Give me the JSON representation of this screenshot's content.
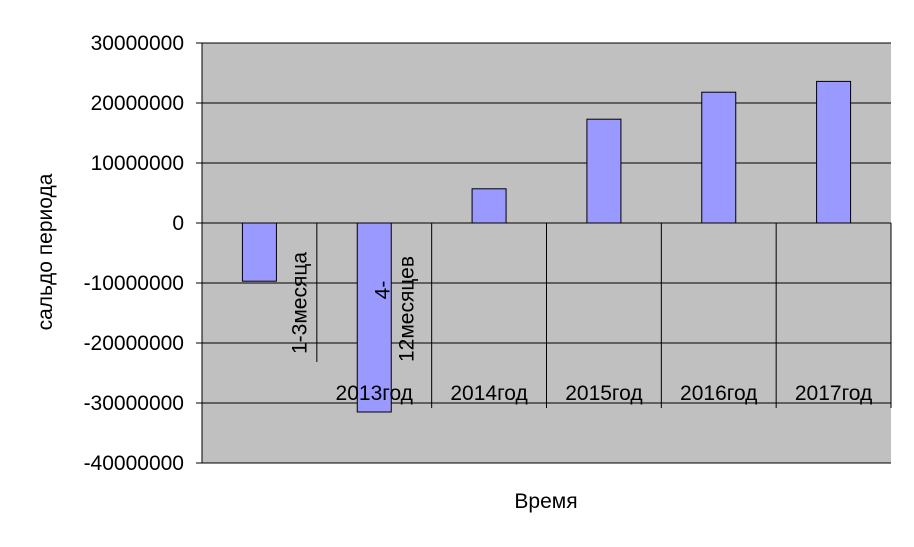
{
  "chart_data": {
    "type": "bar",
    "title": "",
    "xlabel": "Время",
    "ylabel": "сальдо периода",
    "ylim": [
      -40000000,
      30000000
    ],
    "yticks": [
      "30000000",
      "20000000",
      "10000000",
      "0",
      "-10000000",
      "-20000000",
      "-30000000",
      "-40000000"
    ],
    "categories": [
      "1-3месяца",
      "4-12месяцев 2013год",
      "2014год",
      "2015год",
      "2016год",
      "2017год"
    ],
    "category_labels": [
      {
        "lines": [
          "1-3месяца"
        ],
        "rotated": true
      },
      {
        "lines": [
          "4-",
          "12месяцев"
        ],
        "rotated": true,
        "group": "2013год"
      },
      {
        "lines": [
          "2014год"
        ],
        "rotated": false
      },
      {
        "lines": [
          "2015год"
        ],
        "rotated": false
      },
      {
        "lines": [
          "2016год"
        ],
        "rotated": false
      },
      {
        "lines": [
          "2017год"
        ],
        "rotated": false
      }
    ],
    "values": [
      -9700000,
      -31500000,
      5700000,
      17300000,
      21800000,
      23600000
    ],
    "grid": true,
    "legend": "none",
    "colors": {
      "bar_fill": "#9999ff",
      "bar_stroke": "#000000",
      "plot_bg": "#c0c0c0",
      "grid": "#000000"
    }
  }
}
